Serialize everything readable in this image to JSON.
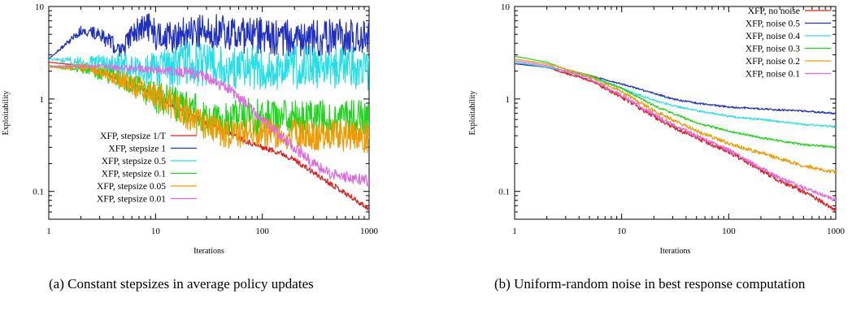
{
  "chart_data": [
    {
      "type": "line",
      "caption": "(a) Constant stepsizes in average policy updates",
      "xlabel": "Iterations",
      "ylabel": "Exploitability",
      "xscale": "log",
      "yscale": "log",
      "xlim": [
        1,
        1000
      ],
      "ylim": [
        0.05,
        10
      ],
      "xticks": [
        1,
        10,
        100,
        1000
      ],
      "xtick_labels": [
        "1",
        "10",
        "100",
        "1000"
      ],
      "yticks": [
        0.1,
        1,
        10
      ],
      "ytick_labels": [
        "0.1",
        "1",
        "10"
      ],
      "grid": false,
      "legend_position": "bottom-left",
      "series": [
        {
          "name": "XFP, stepsize 1/T",
          "color": "#e41a1c",
          "x": [
            1,
            2,
            3,
            5,
            8,
            12,
            20,
            30,
            50,
            80,
            100,
            150,
            200,
            300,
            500,
            700,
            1000
          ],
          "y": [
            2.5,
            2.3,
            2.0,
            1.55,
            1.25,
            0.95,
            0.7,
            0.55,
            0.42,
            0.33,
            0.3,
            0.26,
            0.22,
            0.16,
            0.11,
            0.085,
            0.065
          ],
          "noise": 0.03
        },
        {
          "name": "XFP, stepsize 1",
          "color": "#1f2fbf",
          "x": [
            1,
            2,
            3,
            4,
            5,
            6,
            8,
            10,
            15,
            20,
            30,
            50,
            100,
            200,
            500,
            1000
          ],
          "y": [
            2.7,
            5.5,
            5.0,
            3.8,
            3.5,
            4.8,
            6.5,
            5.0,
            4.3,
            5.2,
            5.8,
            5.0,
            4.8,
            4.5,
            4.6,
            4.5
          ],
          "noise": 0.2
        },
        {
          "name": "XFP, stepsize 0.5",
          "color": "#22e0e6",
          "x": [
            1,
            2,
            3,
            5,
            8,
            10,
            15,
            20,
            30,
            50,
            100,
            200,
            500,
            1000
          ],
          "y": [
            2.7,
            2.5,
            2.4,
            2.3,
            2.1,
            2.0,
            2.3,
            2.5,
            2.3,
            2.2,
            2.2,
            2.2,
            2.2,
            2.1
          ],
          "noise": 0.24
        },
        {
          "name": "XFP, stepsize 0.1",
          "color": "#21d41f",
          "x": [
            1,
            2,
            3,
            5,
            10,
            20,
            30,
            40,
            50,
            70,
            100,
            200,
            500,
            1000
          ],
          "y": [
            2.3,
            2.1,
            1.9,
            1.6,
            1.05,
            0.8,
            0.62,
            0.55,
            0.6,
            0.65,
            0.62,
            0.62,
            0.62,
            0.62
          ],
          "noise": 0.2
        },
        {
          "name": "XFP, stepsize 0.05",
          "color": "#f09a00",
          "x": [
            1,
            2,
            3,
            5,
            10,
            15,
            20,
            30,
            50,
            70,
            100,
            200,
            500,
            1000
          ],
          "y": [
            2.2,
            2.2,
            2.0,
            1.6,
            1.1,
            0.85,
            0.68,
            0.5,
            0.42,
            0.43,
            0.44,
            0.42,
            0.4,
            0.38
          ],
          "noise": 0.17
        },
        {
          "name": "XFP, stepsize 0.01",
          "color": "#e06be0",
          "x": [
            1,
            3,
            10,
            20,
            30,
            50,
            70,
            100,
            150,
            200,
            300,
            400,
            500,
            700,
            1000
          ],
          "y": [
            2.25,
            2.25,
            2.1,
            1.95,
            1.7,
            1.25,
            0.9,
            0.6,
            0.4,
            0.3,
            0.2,
            0.16,
            0.15,
            0.14,
            0.13
          ],
          "noise": 0.06
        }
      ]
    },
    {
      "type": "line",
      "caption": "(b) Uniform-random noise in best response computation",
      "xlabel": "Iterations",
      "ylabel": "Exploitability",
      "xscale": "log",
      "yscale": "log",
      "xlim": [
        1,
        1000
      ],
      "ylim": [
        0.05,
        10
      ],
      "xticks": [
        1,
        10,
        100,
        1000
      ],
      "xtick_labels": [
        "1",
        "10",
        "100",
        "1000"
      ],
      "yticks": [
        0.1,
        1,
        10
      ],
      "ytick_labels": [
        "0.1",
        "1",
        "10"
      ],
      "grid": false,
      "legend_position": "top-right",
      "series": [
        {
          "name": "XFP, no noise",
          "color": "#e41a1c",
          "x": [
            1,
            2,
            3,
            5,
            10,
            20,
            30,
            50,
            100,
            200,
            300,
            500,
            700,
            1000
          ],
          "y": [
            2.5,
            2.2,
            1.9,
            1.6,
            1.05,
            0.65,
            0.5,
            0.38,
            0.27,
            0.17,
            0.13,
            0.1,
            0.08,
            0.063
          ],
          "noise": 0.025
        },
        {
          "name": "XFP, noise 0.5",
          "color": "#1f2fbf",
          "x": [
            1,
            2,
            3,
            5,
            10,
            20,
            30,
            50,
            100,
            200,
            500,
            1000
          ],
          "y": [
            2.4,
            2.2,
            2.0,
            1.8,
            1.45,
            1.15,
            1.0,
            0.9,
            0.82,
            0.78,
            0.74,
            0.7
          ],
          "noise": 0.01
        },
        {
          "name": "XFP, noise 0.4",
          "color": "#22e0e6",
          "x": [
            1,
            2,
            3,
            5,
            10,
            20,
            30,
            50,
            100,
            200,
            500,
            1000
          ],
          "y": [
            2.5,
            2.2,
            2.0,
            1.75,
            1.3,
            0.97,
            0.85,
            0.75,
            0.65,
            0.6,
            0.53,
            0.5
          ],
          "noise": 0.01
        },
        {
          "name": "XFP, noise 0.3",
          "color": "#21d41f",
          "x": [
            1,
            2,
            3,
            5,
            10,
            20,
            30,
            50,
            100,
            200,
            500,
            1000
          ],
          "y": [
            2.9,
            2.5,
            2.1,
            1.8,
            1.3,
            0.85,
            0.7,
            0.55,
            0.45,
            0.38,
            0.32,
            0.3
          ],
          "noise": 0.012
        },
        {
          "name": "XFP, noise 0.2",
          "color": "#f09a00",
          "x": [
            1,
            2,
            3,
            5,
            10,
            20,
            30,
            50,
            100,
            200,
            500,
            1000
          ],
          "y": [
            2.7,
            2.4,
            2.1,
            1.75,
            1.2,
            0.75,
            0.6,
            0.45,
            0.33,
            0.26,
            0.19,
            0.16
          ],
          "noise": 0.02
        },
        {
          "name": "XFP, noise 0.1",
          "color": "#e06be0",
          "x": [
            1,
            2,
            3,
            5,
            10,
            20,
            30,
            50,
            100,
            200,
            300,
            500,
            700,
            1000
          ],
          "y": [
            2.6,
            2.3,
            2.0,
            1.65,
            1.1,
            0.68,
            0.53,
            0.4,
            0.28,
            0.18,
            0.14,
            0.11,
            0.095,
            0.08
          ],
          "noise": 0.02
        }
      ]
    }
  ]
}
